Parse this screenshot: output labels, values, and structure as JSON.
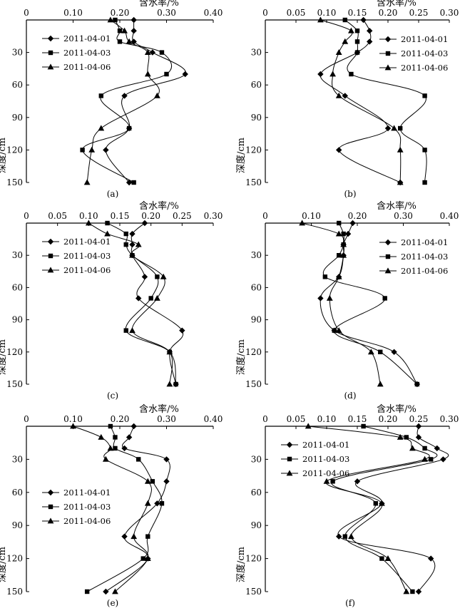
{
  "chart_data": [
    {
      "type": "line",
      "panel_label": "(a)",
      "xlabel": "含水率/%",
      "ylabel": "深度/cm",
      "xlim": [
        0,
        0.4
      ],
      "ylim": [
        150,
        0
      ],
      "x_ticks": [
        "0",
        "0.10",
        "0.20",
        "0.30",
        "0.40"
      ],
      "y_ticks": [
        "30",
        "60",
        "90",
        "120",
        "150"
      ],
      "legend_position": "top-left",
      "series": [
        {
          "name": "2011-04-01",
          "marker": "diamond",
          "x": [
            0.23,
            0.23,
            0.23,
            0.27,
            0.34,
            0.21,
            0.22,
            0.17,
            0.22
          ],
          "y": [
            0,
            10,
            20,
            30,
            50,
            70,
            100,
            120,
            150
          ]
        },
        {
          "name": "2011-04-03",
          "marker": "square",
          "x": [
            0.19,
            0.2,
            0.2,
            0.29,
            0.3,
            0.16,
            0.22,
            0.12,
            0.23
          ],
          "y": [
            0,
            10,
            20,
            30,
            50,
            70,
            100,
            120,
            150
          ]
        },
        {
          "name": "2011-04-06",
          "marker": "triangle",
          "x": [
            0.18,
            0.21,
            0.22,
            0.26,
            0.26,
            0.28,
            0.16,
            0.14,
            0.13
          ],
          "y": [
            0,
            10,
            20,
            30,
            50,
            70,
            100,
            120,
            150
          ]
        }
      ]
    },
    {
      "type": "line",
      "panel_label": "(b)",
      "xlabel": "含水率/%",
      "ylabel": "深度/cm",
      "xlim": [
        0,
        0.3
      ],
      "ylim": [
        150,
        0
      ],
      "x_ticks": [
        "0",
        "0.05",
        "0.10",
        "0.15",
        "0.20",
        "0.25",
        "0.30"
      ],
      "y_ticks": [
        "30",
        "60",
        "90",
        "120",
        "150"
      ],
      "legend_position": "top-right",
      "series": [
        {
          "name": "2011-04-01",
          "marker": "diamond",
          "x": [
            0.16,
            0.17,
            0.17,
            0.15,
            0.09,
            0.13,
            0.2,
            0.12,
            0.22
          ],
          "y": [
            0,
            10,
            20,
            30,
            50,
            70,
            100,
            120,
            150
          ]
        },
        {
          "name": "2011-04-03",
          "marker": "square",
          "x": [
            0.13,
            0.15,
            0.15,
            0.15,
            0.14,
            0.26,
            0.22,
            0.26,
            0.26
          ],
          "y": [
            0,
            10,
            20,
            30,
            50,
            70,
            100,
            120,
            150
          ]
        },
        {
          "name": "2011-04-06",
          "marker": "triangle",
          "x": [
            0.09,
            0.14,
            0.13,
            0.12,
            0.11,
            0.12,
            0.21,
            0.22,
            0.22
          ],
          "y": [
            0,
            10,
            20,
            30,
            50,
            70,
            100,
            120,
            150
          ]
        }
      ]
    },
    {
      "type": "line",
      "panel_label": "(c)",
      "xlabel": "含水率/%",
      "ylabel": "深度/cm",
      "xlim": [
        0,
        0.3
      ],
      "ylim": [
        150,
        0
      ],
      "x_ticks": [
        "0",
        "0.05",
        "0.10",
        "0.15",
        "0.20",
        "0.25",
        "0.30"
      ],
      "y_ticks": [
        "30",
        "60",
        "90",
        "120",
        "150"
      ],
      "legend_position": "top-left",
      "series": [
        {
          "name": "2011-04-01",
          "marker": "diamond",
          "x": [
            0.19,
            0.17,
            0.17,
            0.17,
            0.19,
            0.18,
            0.25,
            0.23,
            0.24
          ],
          "y": [
            0,
            10,
            20,
            30,
            50,
            70,
            100,
            120,
            150
          ]
        },
        {
          "name": "2011-04-03",
          "marker": "square",
          "x": [
            0.13,
            0.16,
            0.16,
            0.17,
            0.21,
            0.2,
            0.16,
            0.23,
            0.24
          ],
          "y": [
            0,
            10,
            20,
            30,
            50,
            70,
            100,
            120,
            150
          ]
        },
        {
          "name": "2011-04-06",
          "marker": "triangle",
          "x": [
            0.1,
            0.13,
            0.18,
            0.17,
            0.22,
            0.21,
            0.17,
            0.23,
            0.23
          ],
          "y": [
            0,
            10,
            20,
            30,
            50,
            70,
            100,
            120,
            150
          ]
        }
      ]
    },
    {
      "type": "line",
      "panel_label": "(d)",
      "xlabel": "含水率/%",
      "ylabel": "深度/cm",
      "xlim": [
        0,
        0.4
      ],
      "ylim": [
        150,
        0
      ],
      "x_ticks": [
        "0",
        "0.10",
        "0.20",
        "0.30",
        "0.40"
      ],
      "y_ticks": [
        "30",
        "60",
        "90",
        "120",
        "150"
      ],
      "legend_position": "top-right",
      "series": [
        {
          "name": "2011-04-01",
          "marker": "diamond",
          "x": [
            0.19,
            0.18,
            0.17,
            0.17,
            0.16,
            0.12,
            0.15,
            0.28,
            0.33
          ],
          "y": [
            0,
            10,
            20,
            30,
            50,
            70,
            100,
            120,
            150
          ]
        },
        {
          "name": "2011-04-03",
          "marker": "square",
          "x": [
            0.16,
            0.17,
            0.17,
            0.16,
            0.13,
            0.26,
            0.15,
            0.25,
            0.33
          ],
          "y": [
            0,
            10,
            20,
            30,
            50,
            70,
            100,
            120,
            150
          ]
        },
        {
          "name": "2011-04-06",
          "marker": "triangle",
          "x": [
            0.08,
            0.16,
            0.17,
            0.17,
            0.16,
            0.14,
            0.16,
            0.23,
            0.25
          ],
          "y": [
            0,
            10,
            20,
            30,
            50,
            70,
            100,
            120,
            150
          ]
        }
      ]
    },
    {
      "type": "line",
      "panel_label": "(e)",
      "xlabel": "含水率/%",
      "ylabel": "深度/cm",
      "xlim": [
        0,
        0.4
      ],
      "ylim": [
        150,
        0
      ],
      "x_ticks": [
        "0",
        "0.10",
        "0.20",
        "0.30",
        "0.40"
      ],
      "y_ticks": [
        "30",
        "60",
        "90",
        "120",
        "150"
      ],
      "legend_position": "mid-left",
      "series": [
        {
          "name": "2011-04-01",
          "marker": "diamond",
          "x": [
            0.23,
            0.22,
            0.21,
            0.3,
            0.3,
            0.28,
            0.21,
            0.26,
            0.17
          ],
          "y": [
            0,
            10,
            20,
            30,
            50,
            70,
            100,
            120,
            150
          ]
        },
        {
          "name": "2011-04-03",
          "marker": "square",
          "x": [
            0.18,
            0.19,
            0.19,
            0.24,
            0.27,
            0.29,
            0.26,
            0.25,
            0.13
          ],
          "y": [
            0,
            10,
            20,
            30,
            50,
            70,
            100,
            120,
            150
          ]
        },
        {
          "name": "2011-04-06",
          "marker": "triangle",
          "x": [
            0.1,
            0.16,
            0.18,
            0.17,
            0.26,
            0.26,
            0.23,
            0.26,
            0.19
          ],
          "y": [
            0,
            10,
            20,
            30,
            50,
            70,
            100,
            120,
            150
          ]
        }
      ]
    },
    {
      "type": "line",
      "panel_label": "(f)",
      "xlabel": "含水率/%",
      "ylabel": "深度/cm",
      "xlim": [
        0,
        0.3
      ],
      "ylim": [
        150,
        0
      ],
      "x_ticks": [
        "0",
        "0.05",
        "0.10",
        "0.15",
        "0.20",
        "0.25",
        "0.30"
      ],
      "y_ticks": [
        "30",
        "60",
        "90",
        "120",
        "150"
      ],
      "legend_position": "top-left",
      "series": [
        {
          "name": "2011-04-01",
          "marker": "diamond",
          "x": [
            0.25,
            0.25,
            0.28,
            0.29,
            0.15,
            0.19,
            0.12,
            0.27,
            0.25
          ],
          "y": [
            0,
            10,
            20,
            30,
            50,
            70,
            100,
            120,
            150
          ]
        },
        {
          "name": "2011-04-03",
          "marker": "square",
          "x": [
            0.16,
            0.23,
            0.26,
            0.27,
            0.11,
            0.18,
            0.13,
            0.19,
            0.24
          ],
          "y": [
            0,
            10,
            20,
            30,
            50,
            70,
            100,
            120,
            150
          ]
        },
        {
          "name": "2011-04-06",
          "marker": "triangle",
          "x": [
            0.07,
            0.22,
            0.24,
            0.26,
            0.1,
            0.19,
            0.14,
            0.2,
            0.23
          ],
          "y": [
            0,
            10,
            20,
            30,
            50,
            70,
            100,
            120,
            150
          ]
        }
      ]
    }
  ]
}
